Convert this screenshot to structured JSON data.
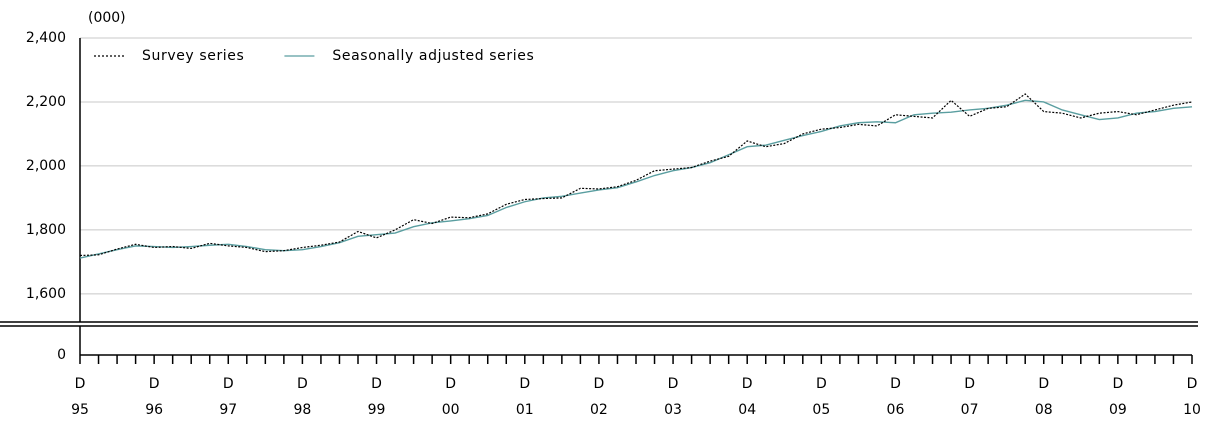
{
  "chart_data": {
    "type": "line",
    "y_label": "(000)",
    "axis_break": true,
    "ylim": [
      1512,
      2400
    ],
    "yticks": [
      0,
      {
        "value": 1600,
        "label": "1,600"
      },
      {
        "value": 1800,
        "label": "1,800"
      },
      {
        "value": 2000,
        "label": "2,000"
      },
      {
        "value": 2200,
        "label": "2,200"
      },
      {
        "value": 2400,
        "label": "2,400"
      }
    ],
    "grid": true,
    "legend": "top-left",
    "month_labels": [
      "D",
      null,
      null,
      null,
      "D",
      null,
      null,
      null,
      "D",
      null,
      null,
      null,
      "D",
      null,
      null,
      null,
      "D",
      null,
      null,
      null,
      "D",
      null,
      null,
      null,
      "D",
      null,
      null,
      null,
      "D",
      null,
      null,
      null,
      "D",
      null,
      null,
      null,
      "D",
      null,
      null,
      null,
      "D",
      null,
      null,
      null,
      "D",
      null,
      null,
      null,
      "D",
      null,
      null,
      null,
      "D",
      null,
      null,
      null,
      "D",
      null,
      null,
      null,
      "D"
    ],
    "categories": [
      "95",
      null,
      null,
      null,
      "96",
      null,
      null,
      null,
      "97",
      null,
      null,
      null,
      "98",
      null,
      null,
      null,
      "99",
      null,
      null,
      null,
      "00",
      null,
      null,
      null,
      "01",
      null,
      null,
      null,
      "02",
      null,
      null,
      null,
      "03",
      null,
      null,
      null,
      "04",
      null,
      null,
      null,
      "05",
      null,
      null,
      null,
      "06",
      null,
      null,
      null,
      "07",
      null,
      null,
      null,
      "08",
      null,
      null,
      null,
      "09",
      null,
      null,
      null,
      "10"
    ],
    "series": [
      {
        "name": "Survey series",
        "color": "#000000",
        "dash": true,
        "values": [
          1720,
          1722,
          1740,
          1755,
          1745,
          1748,
          1742,
          1758,
          1750,
          1745,
          1732,
          1735,
          1745,
          1752,
          1762,
          1795,
          1775,
          1800,
          1832,
          1820,
          1840,
          1838,
          1850,
          1880,
          1895,
          1898,
          1900,
          1930,
          1928,
          1935,
          1955,
          1985,
          1990,
          1995,
          2015,
          2030,
          2078,
          2060,
          2070,
          2100,
          2115,
          2120,
          2130,
          2125,
          2160,
          2155,
          2150,
          2205,
          2155,
          2180,
          2185,
          2225,
          2170,
          2165,
          2150,
          2165,
          2170,
          2160,
          2175,
          2190,
          2200
        ]
      },
      {
        "name": "Seasonally adjusted series",
        "color": "#5a9ea0",
        "dash": false,
        "values": [
          1712,
          1725,
          1738,
          1750,
          1748,
          1745,
          1748,
          1752,
          1755,
          1748,
          1738,
          1735,
          1738,
          1748,
          1760,
          1780,
          1785,
          1790,
          1810,
          1822,
          1828,
          1835,
          1845,
          1870,
          1888,
          1900,
          1905,
          1915,
          1925,
          1932,
          1950,
          1970,
          1985,
          1995,
          2010,
          2035,
          2060,
          2065,
          2080,
          2095,
          2108,
          2125,
          2135,
          2138,
          2135,
          2160,
          2165,
          2168,
          2175,
          2180,
          2190,
          2205,
          2200,
          2175,
          2160,
          2145,
          2150,
          2165,
          2170,
          2180,
          2185
        ]
      }
    ]
  }
}
